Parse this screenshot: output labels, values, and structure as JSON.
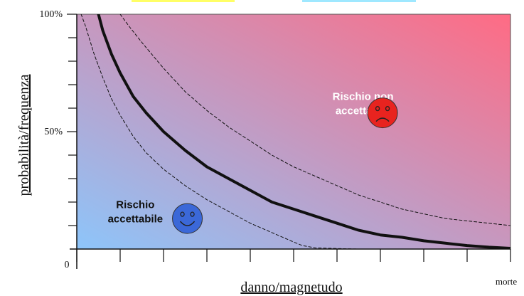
{
  "chart_data": {
    "type": "line",
    "xlabel": "danno/magnetudo",
    "ylabel": "probabilità/frequenza",
    "x_end_label": "morte",
    "x_origin_label": "0",
    "x_tick_count": 11,
    "xlim": [
      0,
      10
    ],
    "ylim": [
      0,
      100
    ],
    "y_tick_labels": [
      {
        "value": 0,
        "label": "0"
      },
      {
        "value": 50,
        "label": "50%"
      },
      {
        "value": 100,
        "label": "100%"
      }
    ],
    "y_minor_ticks": [
      10,
      20,
      30,
      40,
      60,
      70,
      80,
      90
    ],
    "series": [
      {
        "role": "main",
        "style": "solid",
        "x": [
          0.5,
          0.6,
          0.8,
          1.0,
          1.3,
          1.6,
          2.0,
          2.5,
          3.0,
          3.5,
          4.0,
          4.5,
          5.0,
          5.5,
          6.0,
          6.5,
          7.0,
          7.5,
          8.0,
          8.5,
          9.0,
          9.5,
          10.0
        ],
        "y": [
          100,
          93,
          83,
          75,
          65,
          58,
          50,
          42,
          35,
          30,
          25,
          20,
          17,
          14,
          11,
          8,
          6,
          5,
          3.5,
          2.5,
          1.5,
          0.8,
          0.3
        ]
      },
      {
        "role": "upper-bound",
        "style": "dashed",
        "x": [
          1.0,
          1.2,
          1.5,
          2.0,
          2.5,
          3.0,
          3.5,
          4.0,
          4.5,
          5.0,
          5.5,
          6.0,
          6.5,
          7.0,
          7.5,
          8.0,
          8.5,
          9.0,
          9.5,
          10.0
        ],
        "y": [
          100,
          95,
          88,
          77,
          67,
          59,
          52,
          46,
          40,
          35,
          31,
          27,
          23,
          20,
          17,
          15,
          13,
          12,
          11,
          10
        ]
      },
      {
        "role": "lower-bound",
        "style": "dashed",
        "x": [
          0.1,
          0.2,
          0.4,
          0.6,
          0.8,
          1.0,
          1.3,
          1.6,
          2.0,
          2.5,
          3.0,
          3.5,
          4.0,
          4.5,
          5.0,
          5.2,
          5.5,
          6.0,
          6.5
        ],
        "y": [
          100,
          95,
          83,
          73,
          64,
          57,
          48,
          41,
          34,
          27,
          21,
          16,
          11,
          7,
          3,
          1.5,
          0.5,
          0.2,
          0
        ]
      }
    ],
    "annotations": [
      {
        "id": "unacceptable",
        "lines": [
          "Rischio non",
          "accettabile"
        ],
        "x": 6.6,
        "y": 61,
        "text_color": "#ffffff",
        "icon": "frown-icon",
        "icon_color": "#e8231f",
        "icon_x": 7.05,
        "icon_y": 58
      },
      {
        "id": "acceptable",
        "lines": [
          "Rischio",
          "accettabile"
        ],
        "x": 1.35,
        "y": 15,
        "text_color": "#111111",
        "icon": "smile-icon",
        "icon_color": "#3b68d8",
        "icon_x": 2.55,
        "icon_y": 13
      }
    ],
    "background": {
      "type": "gradient",
      "from_color": "#8dc5fa",
      "to_color": "#ff6b84",
      "direction": "bottom-left to top-right"
    },
    "grid": false
  },
  "colors": {
    "yellow_strip": "#ffff66",
    "cyan_strip": "#9fe8ff"
  }
}
